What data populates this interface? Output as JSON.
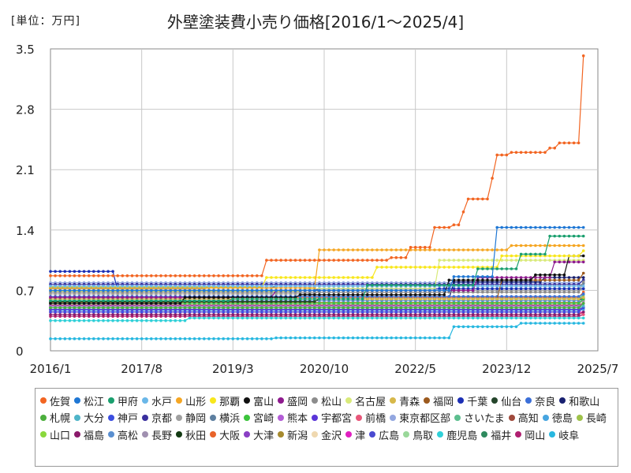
{
  "chart_data": {
    "type": "line",
    "title": "外壁塗装費小売り価格[2016/1～2025/4]",
    "unit_label": "[単位：万円]",
    "ylim": [
      0,
      3.5
    ],
    "yticks": [
      "0",
      "0.7",
      "1.4",
      "2.1",
      "2.8",
      "3.5"
    ],
    "xticks": [
      "2016/1",
      "2017/8",
      "2019/3",
      "2020/10",
      "2022/5",
      "2023/12",
      "2025/7"
    ],
    "x_start": "2016/1",
    "x_end": "2025/4",
    "series": [
      {
        "name": "佐賀",
        "color": "#f26522",
        "steps": [
          [
            0,
            0.87
          ],
          [
            47,
            0.87
          ],
          [
            48,
            1.05
          ],
          [
            60,
            1.05
          ],
          [
            61,
            1.05
          ],
          [
            69,
            1.05
          ],
          [
            70,
            1.05
          ],
          [
            76,
            1.08
          ],
          [
            80,
            1.2
          ],
          [
            85,
            1.43
          ],
          [
            89,
            1.46
          ],
          [
            92,
            1.61
          ],
          [
            93,
            1.76
          ],
          [
            97,
            1.76
          ],
          [
            98,
            2.0
          ],
          [
            99,
            2.27
          ],
          [
            102,
            2.3
          ],
          [
            110,
            2.3
          ],
          [
            111,
            2.35
          ],
          [
            113,
            2.41
          ],
          [
            118,
            2.41
          ],
          [
            119,
            3.42
          ]
        ]
      },
      {
        "name": "松江",
        "color": "#1f77d4",
        "steps": [
          [
            0,
            0.7
          ],
          [
            60,
            0.7
          ],
          [
            90,
            0.86
          ],
          [
            99,
            1.43
          ],
          [
            111,
            1.43
          ],
          [
            119,
            1.43
          ]
        ]
      },
      {
        "name": "甲府",
        "color": "#1a9f6e",
        "steps": [
          [
            0,
            0.58
          ],
          [
            40,
            0.6
          ],
          [
            70,
            0.76
          ],
          [
            95,
            0.95
          ],
          [
            105,
            1.12
          ],
          [
            111,
            1.33
          ],
          [
            119,
            1.33
          ]
        ]
      },
      {
        "name": "水戸",
        "color": "#6ab7e8",
        "steps": [
          [
            0,
            0.75
          ],
          [
            119,
            0.75
          ]
        ]
      },
      {
        "name": "山形",
        "color": "#f5a623",
        "steps": [
          [
            0,
            0.72
          ],
          [
            35,
            0.73
          ],
          [
            60,
            1.17
          ],
          [
            90,
            1.17
          ],
          [
            102,
            1.22
          ],
          [
            119,
            1.22
          ]
        ]
      },
      {
        "name": "那覇",
        "color": "#f8e71c",
        "steps": [
          [
            0,
            0.74
          ],
          [
            48,
            0.85
          ],
          [
            72,
            0.97
          ],
          [
            100,
            1.1
          ],
          [
            119,
            1.16
          ]
        ]
      },
      {
        "name": "富山",
        "color": "#111111",
        "steps": [
          [
            0,
            0.55
          ],
          [
            30,
            0.62
          ],
          [
            55,
            0.65
          ],
          [
            88,
            0.82
          ],
          [
            108,
            0.88
          ],
          [
            115,
            1.1
          ],
          [
            119,
            1.1
          ]
        ]
      },
      {
        "name": "盛岡",
        "color": "#8e1a8e",
        "steps": [
          [
            0,
            0.62
          ],
          [
            50,
            0.7
          ],
          [
            95,
            0.85
          ],
          [
            112,
            1.03
          ],
          [
            119,
            1.03
          ]
        ]
      },
      {
        "name": "松山",
        "color": "#8c8c8c",
        "steps": [
          [
            0,
            0.68
          ],
          [
            119,
            0.8
          ]
        ]
      },
      {
        "name": "名古屋",
        "color": "#d9ea7a",
        "steps": [
          [
            0,
            0.69
          ],
          [
            56,
            0.72
          ],
          [
            86,
            1.05
          ],
          [
            119,
            1.05
          ]
        ]
      },
      {
        "name": "青森",
        "color": "#d7b84a",
        "steps": [
          [
            0,
            0.6
          ],
          [
            119,
            0.62
          ]
        ]
      },
      {
        "name": "福岡",
        "color": "#9c5a1e",
        "steps": [
          [
            0,
            0.6
          ],
          [
            100,
            0.82
          ],
          [
            119,
            0.9
          ]
        ]
      },
      {
        "name": "千葉",
        "color": "#1c2fb5",
        "steps": [
          [
            0,
            0.92
          ],
          [
            13,
            0.92
          ],
          [
            14,
            0.7
          ],
          [
            60,
            0.72
          ],
          [
            119,
            0.72
          ]
        ]
      },
      {
        "name": "仙台",
        "color": "#24452b",
        "steps": [
          [
            0,
            0.57
          ],
          [
            60,
            0.6
          ],
          [
            119,
            0.62
          ]
        ]
      },
      {
        "name": "奈良",
        "color": "#3b6fd8",
        "steps": [
          [
            0,
            0.63
          ],
          [
            119,
            0.66
          ]
        ]
      },
      {
        "name": "和歌山",
        "color": "#182070",
        "steps": [
          [
            0,
            0.6
          ],
          [
            90,
            0.8
          ],
          [
            110,
            0.85
          ],
          [
            119,
            0.85
          ]
        ]
      },
      {
        "name": "札幌",
        "color": "#4caf3d",
        "steps": [
          [
            0,
            0.5
          ],
          [
            119,
            0.55
          ]
        ]
      },
      {
        "name": "大分",
        "color": "#4fb5c9",
        "steps": [
          [
            0,
            0.5
          ],
          [
            119,
            0.52
          ]
        ]
      },
      {
        "name": "神戸",
        "color": "#3c4ee0",
        "steps": [
          [
            0,
            0.45
          ],
          [
            119,
            0.5
          ]
        ]
      },
      {
        "name": "京都",
        "color": "#3a2f9e",
        "steps": [
          [
            0,
            0.77
          ],
          [
            119,
            0.82
          ]
        ]
      },
      {
        "name": "静岡",
        "color": "#a0a0a0",
        "steps": [
          [
            0,
            0.66
          ],
          [
            60,
            0.7
          ],
          [
            119,
            0.72
          ]
        ]
      },
      {
        "name": "横浜",
        "color": "#5d7fa0",
        "steps": [
          [
            0,
            0.73
          ],
          [
            50,
            0.75
          ],
          [
            119,
            0.78
          ]
        ]
      },
      {
        "name": "宮崎",
        "color": "#3cc43c",
        "steps": [
          [
            0,
            0.55
          ],
          [
            119,
            0.6
          ]
        ]
      },
      {
        "name": "熊本",
        "color": "#b35cd6",
        "steps": [
          [
            0,
            0.52
          ],
          [
            119,
            0.55
          ]
        ]
      },
      {
        "name": "宇都宮",
        "color": "#5a35d8",
        "steps": [
          [
            0,
            0.48
          ],
          [
            119,
            0.5
          ]
        ]
      },
      {
        "name": "前橋",
        "color": "#e8577a",
        "steps": [
          [
            0,
            0.45
          ],
          [
            119,
            0.42
          ]
        ]
      },
      {
        "name": "東京都区部",
        "color": "#93a7e0",
        "steps": [
          [
            0,
            0.79
          ],
          [
            119,
            0.82
          ]
        ]
      },
      {
        "name": "さいたま",
        "color": "#5dbf8f",
        "steps": [
          [
            0,
            0.6
          ],
          [
            119,
            0.65
          ]
        ]
      },
      {
        "name": "高知",
        "color": "#a04a3c",
        "steps": [
          [
            0,
            0.53
          ],
          [
            119,
            0.55
          ]
        ]
      },
      {
        "name": "徳島",
        "color": "#47a5e0",
        "steps": [
          [
            0,
            0.47
          ],
          [
            119,
            0.48
          ]
        ]
      },
      {
        "name": "長崎",
        "color": "#9fc24a",
        "steps": [
          [
            0,
            0.6
          ],
          [
            119,
            0.65
          ]
        ]
      },
      {
        "name": "山口",
        "color": "#8ad83c",
        "steps": [
          [
            0,
            0.5
          ],
          [
            119,
            0.55
          ]
        ]
      },
      {
        "name": "福島",
        "color": "#8b1a6b",
        "steps": [
          [
            0,
            0.42
          ],
          [
            119,
            0.45
          ]
        ]
      },
      {
        "name": "高松",
        "color": "#5a8fd0",
        "steps": [
          [
            0,
            0.58
          ],
          [
            119,
            0.6
          ]
        ]
      },
      {
        "name": "長野",
        "color": "#a090b0",
        "steps": [
          [
            0,
            0.55
          ],
          [
            119,
            0.58
          ]
        ]
      },
      {
        "name": "秋田",
        "color": "#123a12",
        "steps": [
          [
            0,
            0.55
          ],
          [
            30,
            0.6
          ],
          [
            119,
            0.6
          ]
        ]
      },
      {
        "name": "大阪",
        "color": "#e8632a",
        "steps": [
          [
            0,
            0.62
          ],
          [
            119,
            0.68
          ]
        ]
      },
      {
        "name": "大津",
        "color": "#8a3fc4",
        "steps": [
          [
            0,
            0.5
          ],
          [
            119,
            0.55
          ]
        ]
      },
      {
        "name": "新潟",
        "color": "#a68a2e",
        "steps": [
          [
            0,
            0.56
          ],
          [
            119,
            0.58
          ]
        ]
      },
      {
        "name": "金沢",
        "color": "#efd8b0",
        "steps": [
          [
            0,
            0.55
          ],
          [
            119,
            0.55
          ]
        ]
      },
      {
        "name": "津",
        "color": "#e020c0",
        "steps": [
          [
            0,
            0.45
          ],
          [
            119,
            0.45
          ]
        ]
      },
      {
        "name": "広島",
        "color": "#4a4ad0",
        "steps": [
          [
            0,
            0.48
          ],
          [
            119,
            0.5
          ]
        ]
      },
      {
        "name": "鳥取",
        "color": "#9ad89a",
        "steps": [
          [
            0,
            0.5
          ],
          [
            119,
            0.5
          ]
        ]
      },
      {
        "name": "鹿児島",
        "color": "#30d0d8",
        "steps": [
          [
            0,
            0.35
          ],
          [
            30,
            0.35
          ],
          [
            31,
            0.38
          ],
          [
            119,
            0.38
          ]
        ]
      },
      {
        "name": "福井",
        "color": "#2e8a5e",
        "steps": [
          [
            0,
            0.52
          ],
          [
            119,
            0.55
          ]
        ]
      },
      {
        "name": "岡山",
        "color": "#b02070",
        "steps": [
          [
            0,
            0.4
          ],
          [
            119,
            0.42
          ]
        ]
      },
      {
        "name": "岐阜",
        "color": "#28b8e0",
        "steps": [
          [
            0,
            0.14
          ],
          [
            50,
            0.15
          ],
          [
            89,
            0.15
          ],
          [
            90,
            0.28
          ],
          [
            103,
            0.28
          ],
          [
            104,
            0.32
          ],
          [
            119,
            0.32
          ]
        ]
      }
    ]
  }
}
